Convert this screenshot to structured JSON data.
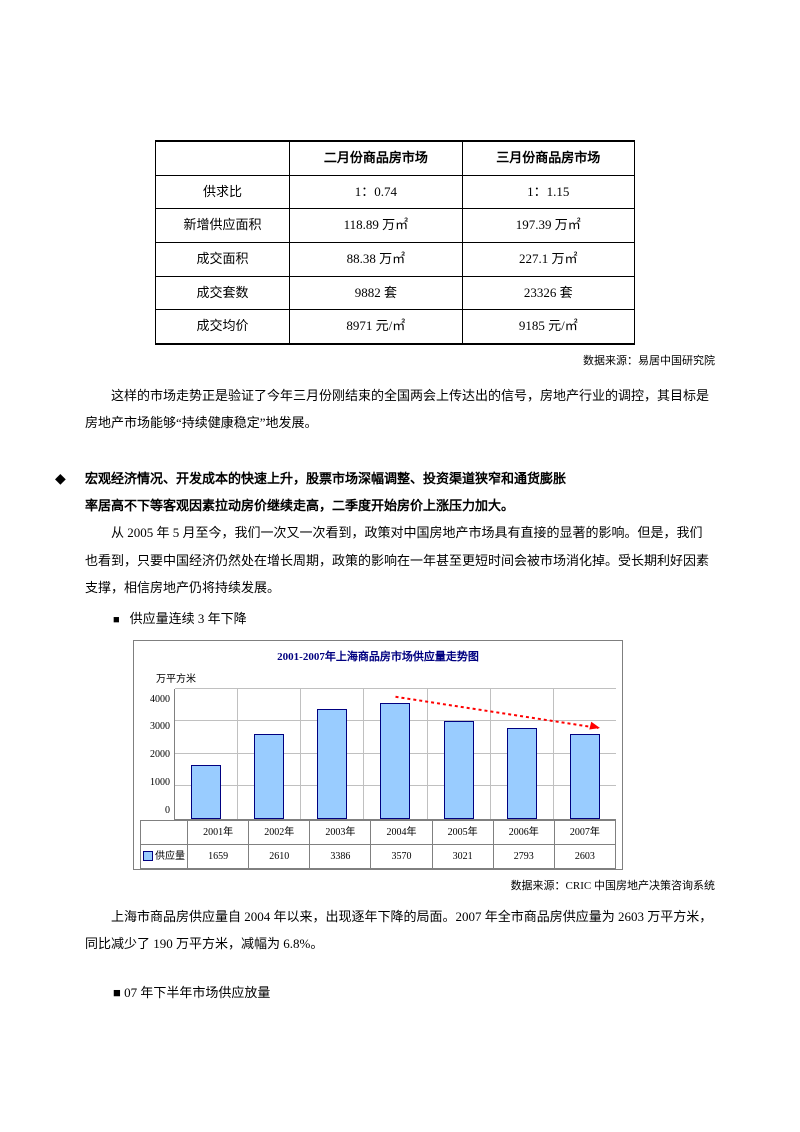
{
  "table": {
    "headers": [
      "",
      "二月份商品房市场",
      "三月份商品房市场"
    ],
    "rows": [
      [
        "供求比",
        "1：0.74",
        "1：1.15"
      ],
      [
        "新增供应面积",
        "118.89 万㎡",
        "197.39 万㎡"
      ],
      [
        "成交面积",
        "88.38 万㎡",
        "227.1 万㎡"
      ],
      [
        "成交套数",
        "9882 套",
        "23326 套"
      ],
      [
        "成交均价",
        "8971 元/㎡",
        "9185 元/㎡"
      ]
    ],
    "source": "数据来源：易居中国研究院"
  },
  "para1": "这样的市场走势正是验证了今年三月份刚结束的全国两会上传达出的信号，房地产行业的调控，其目标是房地产市场能够“持续健康稳定”地发展。",
  "bullet_bold_line1": "宏观经济情况、开发成本的快速上升，股票市场深幅调整、投资渠道狭窄和通货膨胀",
  "bullet_bold_line2": "率居高不下等客观因素拉动房价继续走高，二季度开始房价上涨压力加大。",
  "para2": "从 2005 年 5 月至今，我们一次又一次看到，政策对中国房地产市场具有直接的显著的影响。但是，我们也看到，只要中国经济仍然处在增长周期，政策的影响在一年甚至更短时间会被市场消化掉。受长期利好因素支撑，相信房地产仍将持续发展。",
  "sub_bullet1": "供应量连续 3 年下降",
  "chart": {
    "title": "2001-2007年上海商品房市场供应量走势图",
    "ylabel": "万平方米",
    "ymax": 4000,
    "yticks": [
      4000,
      3000,
      2000,
      1000,
      0
    ],
    "categories": [
      "2001年",
      "2002年",
      "2003年",
      "2004年",
      "2005年",
      "2006年",
      "2007年"
    ],
    "series_label": "供应量",
    "values": [
      1659,
      2610,
      3386,
      3570,
      3021,
      2793,
      2603
    ],
    "bar_fill": "#99ccff",
    "bar_border": "#000080",
    "grid_color": "#c0c0c0",
    "axis_color": "#808080",
    "title_color": "#000080",
    "arrow_color": "#ff0000",
    "source": "数据来源：CRIC 中国房地产决策咨询系统"
  },
  "para3": "上海市商品房供应量自 2004 年以来，出现逐年下降的局面。2007 年全市商品房供应量为 2603 万平方米，同比减少了 190 万平方米，减幅为 6.8%。",
  "sub_bullet2": "07 年下半年市场供应放量"
}
